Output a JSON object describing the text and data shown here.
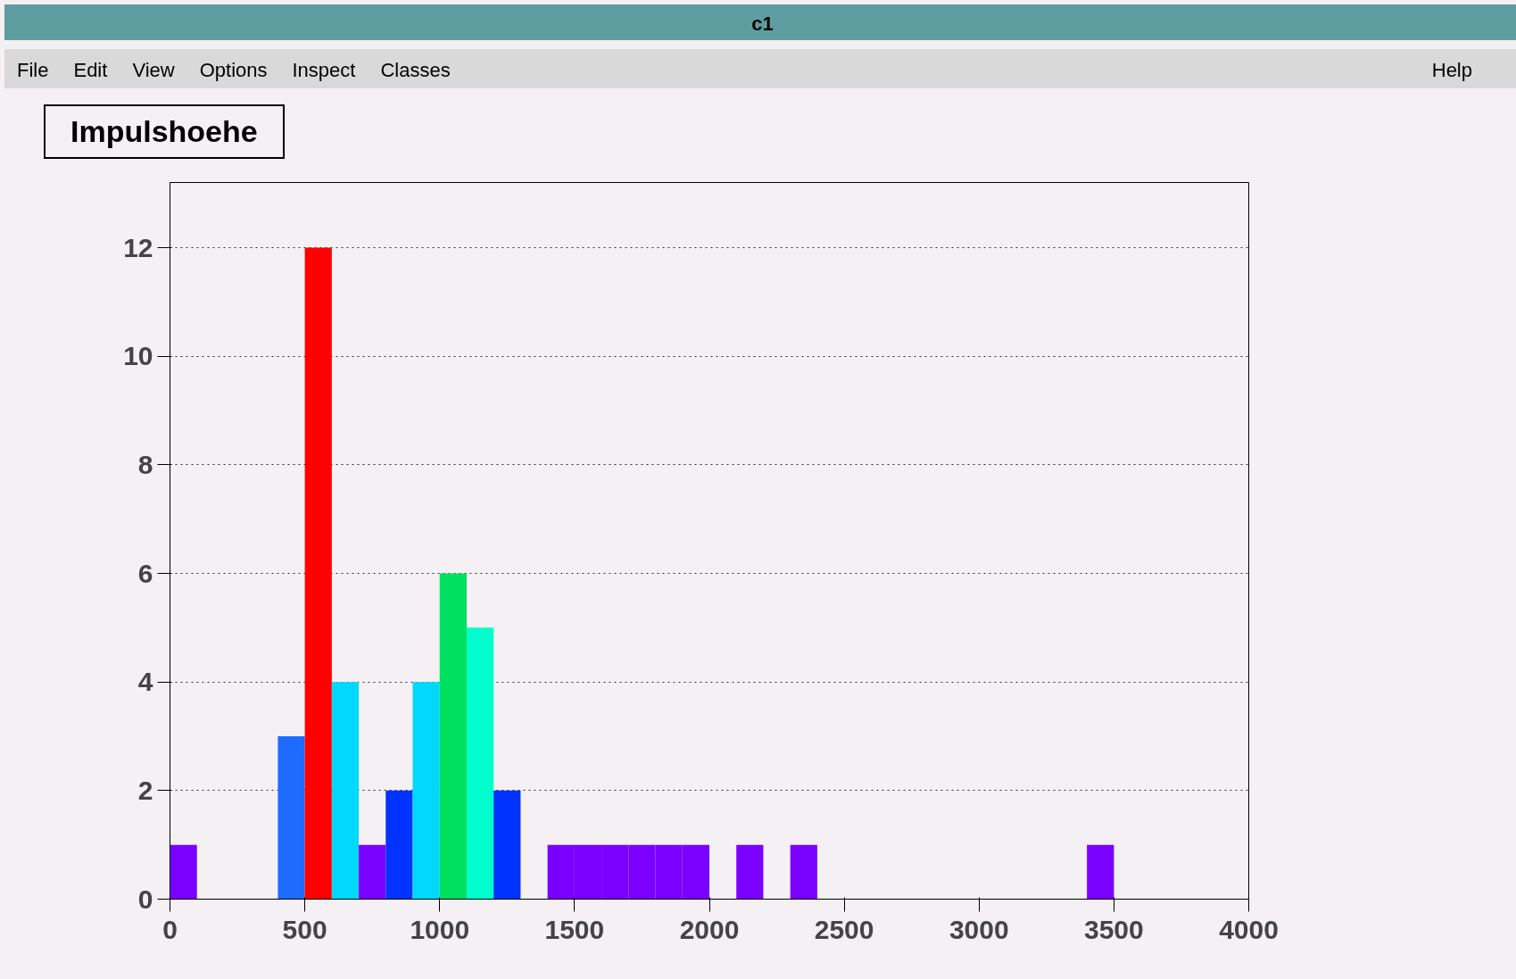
{
  "chart_data": {
    "type": "histogram",
    "title": "Impulshoehe",
    "annotations": [
      "c1",
      "File",
      "Edit",
      "View",
      "Options",
      "Inspect",
      "Classes",
      "Help"
    ],
    "bins": [
      0,
      100,
      200,
      300,
      400,
      500,
      600,
      700,
      800,
      900,
      1000,
      1100,
      1200,
      1300,
      1400,
      1500,
      1600,
      1700,
      1800,
      1900,
      2000,
      2100,
      2200,
      2300,
      2400,
      2500,
      2600,
      2700,
      2800,
      2900,
      3000,
      3100,
      3200,
      3300,
      3400,
      3500,
      3600,
      3700,
      3800,
      3900,
      4000
    ],
    "values": [
      1,
      0,
      0,
      0,
      3,
      12,
      4,
      1,
      2,
      4,
      6,
      5,
      2,
      0,
      1,
      1,
      1,
      1,
      1,
      1,
      0,
      1,
      0,
      1,
      0,
      0,
      0,
      0,
      0,
      0,
      0,
      0,
      0,
      0,
      1,
      0,
      0,
      0,
      0,
      0
    ],
    "colors": [
      "#7a00ff",
      "#7a00ff",
      "#7a00ff",
      "#7a00ff",
      "#1e6bff",
      "#ff0000",
      "#00d8ff",
      "#7a00ff",
      "#0033ff",
      "#00d8ff",
      "#00e060",
      "#00ffcc",
      "#0033ff",
      "#7a00ff",
      "#7a00ff",
      "#7a00ff",
      "#7a00ff",
      "#7a00ff",
      "#7a00ff",
      "#7a00ff",
      "#7a00ff",
      "#7a00ff",
      "#7a00ff",
      "#7a00ff",
      "#7a00ff",
      "#7a00ff",
      "#7a00ff",
      "#7a00ff",
      "#7a00ff",
      "#7a00ff",
      "#7a00ff",
      "#7a00ff",
      "#7a00ff",
      "#7a00ff",
      "#7a00ff",
      "#7a00ff",
      "#7a00ff",
      "#7a00ff",
      "#7a00ff",
      "#7a00ff"
    ],
    "xlim": [
      0,
      4000
    ],
    "xticks": [
      0,
      500,
      1000,
      1500,
      2000,
      2500,
      3000,
      3500,
      4000
    ],
    "ylim": [
      0,
      13.2
    ],
    "yticks": [
      0,
      2,
      4,
      6,
      8,
      10,
      12
    ],
    "grid": "y",
    "line_style": "dotted"
  }
}
